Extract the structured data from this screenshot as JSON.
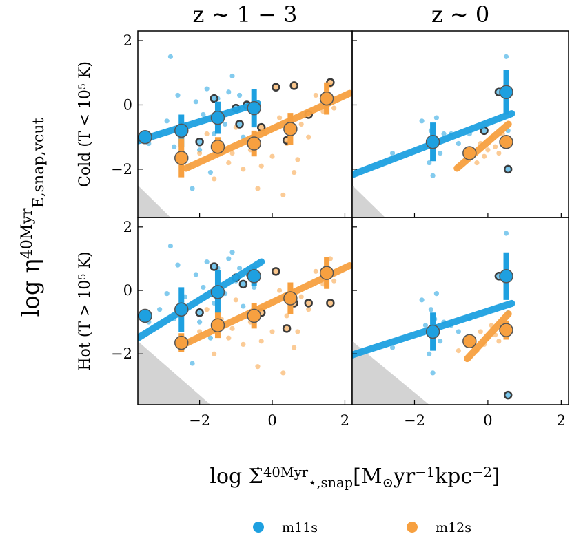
{
  "figure": {
    "ylabel": [
      {
        "text": "log η",
        "pos": "base"
      },
      {
        "text": "40Myr",
        "pos": "sup"
      },
      {
        "text": "E,snap,vcut",
        "pos": "sub"
      }
    ],
    "xlabel": [
      {
        "text": "log Σ̇",
        "pos": "base"
      },
      {
        "text": "40Myr",
        "pos": "sup"
      },
      {
        "text": "⋆,snap",
        "pos": "sub"
      },
      {
        "text": "[M",
        "pos": "base"
      },
      {
        "text": "⊙",
        "pos": "sub"
      },
      {
        "text": "yr",
        "pos": "base"
      },
      {
        "text": "−1",
        "pos": "sup"
      },
      {
        "text": "kpc",
        "pos": "base"
      },
      {
        "text": "−2",
        "pos": "sup"
      },
      {
        "text": "]",
        "pos": "base"
      }
    ]
  },
  "chart_data": [
    {
      "type": "scatter",
      "title": "z ∼ 1 − 3",
      "row_label": [
        {
          "text": "Cold (T < 10",
          "pos": "base"
        },
        {
          "text": "5",
          "pos": "sup"
        },
        {
          "text": " K)",
          "pos": "base"
        }
      ],
      "xlim": [
        -3.7,
        2.2
      ],
      "ylim": [
        -3.5,
        2.3
      ],
      "xticks": [
        {
          "value": -2,
          "label": "−2"
        },
        0,
        2
      ],
      "yticks": [
        {
          "value": -2,
          "label": "−2"
        },
        0,
        2
      ],
      "show_xtick_labels": false,
      "show_ytick_labels": true,
      "shade": {
        "x": [
          -3.7,
          -3.7,
          -2.8
        ],
        "y": [
          -2.5,
          -3.5,
          -3.5
        ]
      },
      "series": [
        {
          "name": "m11s",
          "color": "#1ea0e0",
          "x": [
            -3.4,
            -3.1,
            -2.9,
            -2.7,
            -2.6,
            -2.4,
            -2.3,
            -2.1,
            -2.0,
            -1.9,
            -1.8,
            -1.6,
            -1.5,
            -1.3,
            -1.2,
            -1.0,
            -0.9,
            -0.8,
            -0.6,
            -0.5,
            -2.8,
            -2.2,
            -1.7,
            -1.1
          ],
          "y": [
            -1.2,
            -0.9,
            -0.5,
            -1.3,
            0.3,
            -0.6,
            -1.9,
            0.1,
            -1.4,
            -0.3,
            0.5,
            -0.9,
            0.2,
            -0.6,
            0.4,
            -0.2,
            0.3,
            -1.0,
            0.0,
            -0.4,
            1.5,
            -2.6,
            -2.1,
            0.9
          ],
          "outlier_x": [
            -1.6,
            -1.0,
            -0.7,
            -0.9,
            -2.0
          ],
          "outlier_y": [
            0.2,
            -0.1,
            0.0,
            -0.6,
            -1.15
          ],
          "fit_x": [
            -3.7,
            -0.4
          ],
          "fit_y": [
            -1.12,
            0.04
          ],
          "bin_x": [
            -3.5,
            -2.5,
            -1.5,
            -0.5
          ],
          "bin_y": [
            -1.0,
            -0.8,
            -0.4,
            -0.1
          ],
          "bin_err": [
            0.15,
            0.5,
            0.5,
            0.6
          ]
        },
        {
          "name": "m12s",
          "color": "#f7a040",
          "x": [
            -2.0,
            -1.8,
            -1.6,
            -1.4,
            -1.2,
            -1.0,
            -0.8,
            -0.6,
            -0.4,
            -0.2,
            0.0,
            0.2,
            0.4,
            0.6,
            0.8,
            1.0,
            1.2,
            1.4,
            1.6,
            -0.3,
            0.3,
            -1.1,
            0.7,
            1.7
          ],
          "y": [
            -1.5,
            -0.9,
            -2.3,
            -1.2,
            -1.8,
            -0.7,
            -2.0,
            -1.4,
            -2.6,
            -0.9,
            -1.6,
            -0.4,
            -1.2,
            -2.1,
            -0.6,
            -1.0,
            0.3,
            -0.2,
            0.6,
            -1.9,
            -2.8,
            -1.5,
            -1.7,
            -0.1
          ],
          "outlier_x": [
            0.1,
            0.6,
            1.0,
            1.6,
            0.4,
            -0.3
          ],
          "outlier_y": [
            0.55,
            0.6,
            -0.3,
            0.7,
            -1.1,
            -0.7
          ],
          "fit_x": [
            -2.37,
            2.13
          ],
          "fit_y": [
            -1.97,
            0.36
          ],
          "bin_x": [
            -2.5,
            -1.5,
            -0.5,
            0.5,
            1.5
          ],
          "bin_y": [
            -1.65,
            -1.3,
            -1.2,
            -0.75,
            0.2
          ],
          "bin_err": [
            0.6,
            0.3,
            0.4,
            0.5,
            0.5
          ]
        }
      ]
    },
    {
      "type": "scatter",
      "title": "z ∼ 0",
      "xlim": [
        -3.7,
        2.2
      ],
      "ylim": [
        -3.5,
        2.3
      ],
      "xticks": [
        {
          "value": -2,
          "label": "−2"
        },
        0,
        2
      ],
      "yticks": [
        {
          "value": -2,
          "label": "−2"
        },
        0,
        2
      ],
      "show_xtick_labels": false,
      "show_ytick_labels": false,
      "shade": {
        "x": [
          -3.7,
          -3.7,
          -2.8
        ],
        "y": [
          -2.5,
          -3.5,
          -3.5
        ]
      },
      "series": [
        {
          "color": "#1ea0e0",
          "x": [
            -1.8,
            -1.7,
            -1.6,
            -1.55,
            -1.5,
            -1.45,
            -1.4,
            -1.3,
            -1.2,
            -1.0,
            -0.8,
            -0.5,
            -2.6,
            0.5,
            0.55
          ],
          "y": [
            -0.5,
            -1.3,
            -1.8,
            -0.8,
            -2.2,
            -1.0,
            -0.4,
            -1.5,
            -0.9,
            -0.9,
            -1.2,
            -0.9,
            -1.5,
            1.5,
            -0.8
          ],
          "outlier_x": [
            0.3,
            0.55,
            -0.1
          ],
          "outlier_y": [
            0.4,
            -2.0,
            -0.8
          ],
          "fit_x": [
            -3.72,
            0.65
          ],
          "fit_y": [
            -2.18,
            -0.27
          ],
          "bin_x": [
            -1.5,
            0.5
          ],
          "bin_y": [
            -1.15,
            0.4
          ],
          "bin_err": [
            0.6,
            0.7
          ]
        },
        {
          "color": "#f7a040",
          "x": [
            -0.8,
            -0.6,
            -0.4,
            -0.3,
            -0.2,
            -0.1,
            0.0,
            0.1,
            0.2,
            0.3,
            0.4,
            0.5
          ],
          "y": [
            -1.9,
            -1.7,
            -1.5,
            -1.8,
            -1.2,
            -1.6,
            -1.4,
            -1.0,
            -1.3,
            -1.5,
            -0.9,
            -1.2
          ],
          "outlier_x": [],
          "outlier_y": [],
          "fit_x": [
            -0.84,
            0.56
          ],
          "fit_y": [
            -1.97,
            -0.6
          ],
          "bin_x": [
            -0.5,
            0.5
          ],
          "bin_y": [
            -1.5,
            -1.15
          ],
          "bin_err": [
            0.15,
            0.2
          ]
        }
      ]
    },
    {
      "type": "scatter",
      "row_label": [
        {
          "text": "Hot (T > 10",
          "pos": "base"
        },
        {
          "text": "5",
          "pos": "sup"
        },
        {
          "text": " K)",
          "pos": "base"
        }
      ],
      "xlim": [
        -3.7,
        2.2
      ],
      "ylim": [
        -3.6,
        2.3
      ],
      "xticks": [
        {
          "value": -2,
          "label": "−2"
        },
        0,
        2
      ],
      "yticks": [
        {
          "value": -2,
          "label": "−2"
        },
        0,
        2
      ],
      "show_xtick_labels": true,
      "show_ytick_labels": true,
      "shade": {
        "x": [
          -3.7,
          -3.7,
          -1.7
        ],
        "y": [
          -1.6,
          -3.6,
          -3.6
        ]
      },
      "series": [
        {
          "color": "#1ea0e0",
          "x": [
            -3.4,
            -3.1,
            -2.9,
            -2.7,
            -2.6,
            -2.4,
            -2.3,
            -2.1,
            -2.0,
            -1.9,
            -1.8,
            -1.6,
            -1.5,
            -1.3,
            -1.2,
            -1.0,
            -0.9,
            -0.8,
            -0.6,
            -0.5,
            -2.8,
            -2.2,
            -1.7,
            -1.1
          ],
          "y": [
            -1.0,
            -0.6,
            -0.1,
            -0.9,
            0.8,
            -0.2,
            -1.6,
            0.5,
            -1.0,
            0.1,
            0.9,
            -0.4,
            0.7,
            -0.1,
            1.0,
            0.3,
            0.7,
            -0.5,
            0.5,
            0.1,
            1.4,
            -2.3,
            -1.5,
            1.2
          ],
          "outlier_x": [
            -1.0,
            -0.8,
            -0.6,
            -1.6,
            -2.0
          ],
          "outlier_y": [
            0.4,
            0.2,
            0.5,
            0.75,
            -0.7
          ],
          "fit_x": [
            -3.7,
            -0.3
          ],
          "fit_y": [
            -1.5,
            0.9
          ],
          "bin_x": [
            -3.5,
            -2.5,
            -1.5,
            -0.5
          ],
          "bin_y": [
            -0.8,
            -0.6,
            -0.05,
            0.45
          ],
          "bin_err": [
            0.15,
            0.7,
            0.7,
            0.3
          ]
        },
        {
          "color": "#f7a040",
          "x": [
            -2.0,
            -1.8,
            -1.6,
            -1.4,
            -1.2,
            -1.0,
            -0.8,
            -0.6,
            -0.4,
            -0.2,
            0.0,
            0.2,
            0.4,
            0.6,
            0.8,
            1.0,
            1.2,
            1.4,
            1.6,
            -0.3,
            0.3,
            -1.1,
            0.7,
            1.7
          ],
          "y": [
            -1.3,
            -0.6,
            -2.0,
            -0.9,
            -1.5,
            -0.3,
            -1.7,
            -1.0,
            -2.4,
            -0.5,
            -1.3,
            0.0,
            -0.8,
            -1.8,
            -0.2,
            -0.6,
            0.6,
            0.2,
            1.0,
            -1.6,
            -2.6,
            -1.2,
            -1.3,
            0.3
          ],
          "outlier_x": [
            0.1,
            0.6,
            1.0,
            1.6,
            0.4,
            -0.3
          ],
          "outlier_y": [
            0.6,
            -0.4,
            -0.4,
            -0.4,
            -1.2,
            -0.7
          ],
          "fit_x": [
            -2.47,
            2.13
          ],
          "fit_y": [
            -1.72,
            0.78
          ],
          "bin_x": [
            -2.5,
            -1.5,
            -0.5,
            0.5,
            1.5
          ],
          "bin_y": [
            -1.65,
            -1.1,
            -0.8,
            -0.25,
            0.55
          ],
          "bin_err": [
            0.3,
            0.4,
            0.4,
            0.5,
            0.5
          ]
        }
      ]
    },
    {
      "type": "scatter",
      "xlim": [
        -3.7,
        2.2
      ],
      "ylim": [
        -3.6,
        2.3
      ],
      "xticks": [
        {
          "value": -2,
          "label": "−2"
        },
        0,
        2
      ],
      "yticks": [
        {
          "value": -2,
          "label": "−2"
        },
        0,
        2
      ],
      "show_xtick_labels": true,
      "show_ytick_labels": false,
      "shade": {
        "x": [
          -3.7,
          -3.7,
          -1.6
        ],
        "y": [
          -1.6,
          -3.6,
          -3.6
        ]
      },
      "series": [
        {
          "color": "#1ea0e0",
          "x": [
            -1.8,
            -1.7,
            -1.6,
            -1.55,
            -1.5,
            -1.45,
            -1.4,
            -1.3,
            -1.2,
            -1.0,
            -0.8,
            -0.5,
            -2.6,
            0.5,
            0.55
          ],
          "y": [
            -0.3,
            -1.1,
            -2.0,
            -0.6,
            -2.6,
            -0.9,
            -0.1,
            -1.6,
            -1.0,
            -1.1,
            -1.3,
            -0.9,
            -1.8,
            1.8,
            -0.7
          ],
          "outlier_x": [
            0.3,
            0.55
          ],
          "outlier_y": [
            0.45,
            -3.3
          ],
          "fit_x": [
            -3.72,
            0.65
          ],
          "fit_y": [
            -2.04,
            -0.41
          ],
          "bin_x": [
            -1.5,
            0.5
          ],
          "bin_y": [
            -1.3,
            0.45
          ],
          "bin_err": [
            0.6,
            0.75
          ]
        },
        {
          "color": "#f7a040",
          "x": [
            -0.8,
            -0.6,
            -0.4,
            -0.3,
            -0.2,
            -0.1,
            0.0,
            0.1,
            0.2,
            0.3,
            0.4,
            0.5
          ],
          "y": [
            -1.9,
            -1.7,
            -1.5,
            -1.9,
            -1.3,
            -1.7,
            -1.5,
            -1.1,
            -1.4,
            -1.6,
            -1.0,
            -1.3
          ],
          "outlier_x": [],
          "outlier_y": [],
          "fit_x": [
            -0.56,
            0.56
          ],
          "fit_y": [
            -2.15,
            -0.74
          ],
          "bin_x": [
            -0.5,
            0.5
          ],
          "bin_y": [
            -1.6,
            -1.25
          ],
          "bin_err": [
            0.15,
            0.3
          ]
        }
      ]
    }
  ]
}
